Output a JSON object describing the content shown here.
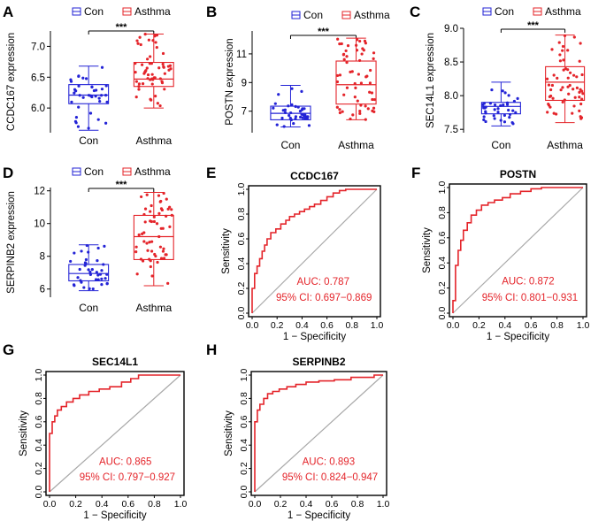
{
  "colors": {
    "con": "#2323d6",
    "asthma": "#e4242a",
    "roc": "#e4242a",
    "diag": "#a8a8a8",
    "axis": "#000000",
    "auc_text": "#e4242a"
  },
  "legend": {
    "con": "Con",
    "asthma": "Asthma"
  },
  "chart_data": [
    {
      "panel": "A",
      "type": "box",
      "ylabel": "CCDC167 expression",
      "categories": [
        "Con",
        "Asthma"
      ],
      "ylim": [
        5.6,
        7.25
      ],
      "yticks": [
        "6.0",
        "6.5",
        "7.0"
      ],
      "ytick_values": [
        6.0,
        6.5,
        7.0
      ],
      "significance": "***",
      "series": [
        {
          "name": "Con",
          "q1": 6.07,
          "median": 6.21,
          "q3": 6.38,
          "whisker_low": 5.64,
          "whisker_high": 6.68
        },
        {
          "name": "Asthma",
          "q1": 6.35,
          "median": 6.47,
          "q3": 6.74,
          "whisker_low": 6.0,
          "whisker_high": 7.2
        }
      ]
    },
    {
      "panel": "B",
      "type": "box",
      "ylabel": "POSTN expression",
      "categories": [
        "Con",
        "Asthma"
      ],
      "ylim": [
        5.5,
        12.6
      ],
      "yticks": [
        "7",
        "9",
        "11"
      ],
      "ytick_values": [
        7,
        9,
        11
      ],
      "significance": "***",
      "series": [
        {
          "name": "Con",
          "q1": 6.4,
          "median": 6.85,
          "q3": 7.35,
          "whisker_low": 5.9,
          "whisker_high": 8.8
        },
        {
          "name": "Asthma",
          "q1": 7.5,
          "median": 8.85,
          "q3": 10.5,
          "whisker_low": 6.4,
          "whisker_high": 12.1
        }
      ]
    },
    {
      "panel": "C",
      "type": "box",
      "ylabel": "SEC14L1 expression",
      "categories": [
        "Con",
        "Asthma"
      ],
      "ylim": [
        7.45,
        9.0
      ],
      "yticks": [
        "7.5",
        "8.0",
        "8.5",
        "9.0"
      ],
      "ytick_values": [
        7.5,
        8.0,
        8.5,
        9.0
      ],
      "significance": "***",
      "series": [
        {
          "name": "Con",
          "q1": 7.73,
          "median": 7.84,
          "q3": 7.9,
          "whisker_low": 7.55,
          "whisker_high": 8.2
        },
        {
          "name": "Asthma",
          "q1": 7.93,
          "median": 8.2,
          "q3": 8.43,
          "whisker_low": 7.6,
          "whisker_high": 8.9
        }
      ]
    },
    {
      "panel": "D",
      "type": "box",
      "ylabel": "SERPINB2 expression",
      "categories": [
        "Con",
        "Asthma"
      ],
      "ylim": [
        5.5,
        12.2
      ],
      "yticks": [
        "6",
        "8",
        "10",
        "12"
      ],
      "ytick_values": [
        6,
        8,
        10,
        12
      ],
      "significance": "***",
      "series": [
        {
          "name": "Con",
          "q1": 6.5,
          "median": 6.95,
          "q3": 7.5,
          "whisker_low": 5.9,
          "whisker_high": 8.7
        },
        {
          "name": "Asthma",
          "q1": 7.8,
          "median": 9.2,
          "q3": 10.5,
          "whisker_low": 6.2,
          "whisker_high": 11.9
        }
      ]
    },
    {
      "panel": "E",
      "type": "roc",
      "title": "CCDC167",
      "xlabel": "1 − Specificity",
      "ylabel": "Sensitivity",
      "ticks": [
        "0.0",
        "0.2",
        "0.4",
        "0.6",
        "0.8",
        "1.0"
      ],
      "auc": "AUC: 0.787",
      "ci": "95% CI: 0.697−0.869",
      "x": [
        0,
        0,
        0.02,
        0.02,
        0.04,
        0.04,
        0.06,
        0.06,
        0.08,
        0.08,
        0.1,
        0.1,
        0.12,
        0.12,
        0.15,
        0.15,
        0.19,
        0.19,
        0.23,
        0.23,
        0.27,
        0.27,
        0.3,
        0.3,
        0.34,
        0.34,
        0.38,
        0.38,
        0.42,
        0.42,
        0.46,
        0.46,
        0.5,
        0.5,
        0.55,
        0.55,
        0.6,
        0.6,
        0.65,
        0.65,
        0.7,
        0.7,
        0.75,
        0.75,
        1.0
      ],
      "y": [
        0,
        0.2,
        0.2,
        0.32,
        0.32,
        0.38,
        0.38,
        0.44,
        0.44,
        0.5,
        0.5,
        0.55,
        0.55,
        0.6,
        0.6,
        0.65,
        0.65,
        0.68,
        0.68,
        0.72,
        0.72,
        0.75,
        0.75,
        0.78,
        0.78,
        0.8,
        0.8,
        0.82,
        0.82,
        0.84,
        0.84,
        0.86,
        0.86,
        0.88,
        0.88,
        0.91,
        0.91,
        0.94,
        0.94,
        0.97,
        0.97,
        0.99,
        0.99,
        1.0,
        1.0
      ]
    },
    {
      "panel": "F",
      "type": "roc",
      "title": "POSTN",
      "xlabel": "1 − Specificity",
      "ylabel": "Sensitivity",
      "ticks": [
        "0.0",
        "0.2",
        "0.4",
        "0.6",
        "0.8",
        "1.0"
      ],
      "auc": "AUC: 0.872",
      "ci": "95% CI: 0.801−0.931",
      "x": [
        0,
        0,
        0.02,
        0.02,
        0.04,
        0.04,
        0.06,
        0.06,
        0.08,
        0.08,
        0.11,
        0.11,
        0.14,
        0.14,
        0.18,
        0.18,
        0.22,
        0.22,
        0.27,
        0.27,
        0.32,
        0.32,
        0.38,
        0.38,
        0.44,
        0.44,
        0.52,
        0.52,
        0.6,
        0.6,
        0.68,
        0.68,
        1.0
      ],
      "y": [
        0,
        0.1,
        0.1,
        0.38,
        0.38,
        0.5,
        0.5,
        0.58,
        0.58,
        0.66,
        0.66,
        0.72,
        0.72,
        0.78,
        0.78,
        0.82,
        0.82,
        0.86,
        0.86,
        0.88,
        0.88,
        0.9,
        0.9,
        0.92,
        0.92,
        0.95,
        0.95,
        0.97,
        0.97,
        0.99,
        0.99,
        1.0,
        1.0
      ]
    },
    {
      "panel": "G",
      "type": "roc",
      "title": "SEC14L1",
      "xlabel": "1 − Specificity",
      "ylabel": "Sensitivity",
      "ticks": [
        "0.0",
        "0.2",
        "0.4",
        "0.6",
        "0.8",
        "1.0"
      ],
      "auc": "AUC: 0.865",
      "ci": "95% CI: 0.797−0.927",
      "x": [
        0,
        0,
        0.02,
        0.02,
        0.04,
        0.04,
        0.06,
        0.06,
        0.09,
        0.09,
        0.13,
        0.13,
        0.18,
        0.18,
        0.23,
        0.23,
        0.3,
        0.3,
        0.38,
        0.38,
        0.46,
        0.46,
        0.55,
        0.55,
        0.62,
        0.62,
        0.68,
        0.68,
        1.0
      ],
      "y": [
        0,
        0.5,
        0.5,
        0.6,
        0.6,
        0.65,
        0.65,
        0.7,
        0.7,
        0.73,
        0.73,
        0.77,
        0.77,
        0.8,
        0.8,
        0.83,
        0.83,
        0.86,
        0.86,
        0.88,
        0.88,
        0.9,
        0.9,
        0.94,
        0.94,
        0.97,
        0.97,
        1.0,
        1.0
      ]
    },
    {
      "panel": "H",
      "type": "roc",
      "title": "SERPINB2",
      "xlabel": "1 − Specificity",
      "ylabel": "Sensitivity",
      "ticks": [
        "0.0",
        "0.2",
        "0.4",
        "0.6",
        "0.8",
        "1.0"
      ],
      "auc": "AUC: 0.893",
      "ci": "95% CI: 0.824−0.947",
      "x": [
        0,
        0,
        0.02,
        0.02,
        0.04,
        0.04,
        0.07,
        0.07,
        0.1,
        0.1,
        0.14,
        0.14,
        0.19,
        0.19,
        0.25,
        0.25,
        0.32,
        0.32,
        0.4,
        0.4,
        0.5,
        0.5,
        0.62,
        0.62,
        0.75,
        0.75,
        0.93,
        0.93,
        1.0
      ],
      "y": [
        0,
        0.6,
        0.6,
        0.7,
        0.7,
        0.75,
        0.75,
        0.8,
        0.8,
        0.84,
        0.84,
        0.86,
        0.86,
        0.88,
        0.88,
        0.9,
        0.9,
        0.92,
        0.92,
        0.94,
        0.94,
        0.95,
        0.95,
        0.96,
        0.96,
        0.98,
        0.98,
        1.0,
        1.0
      ]
    }
  ]
}
